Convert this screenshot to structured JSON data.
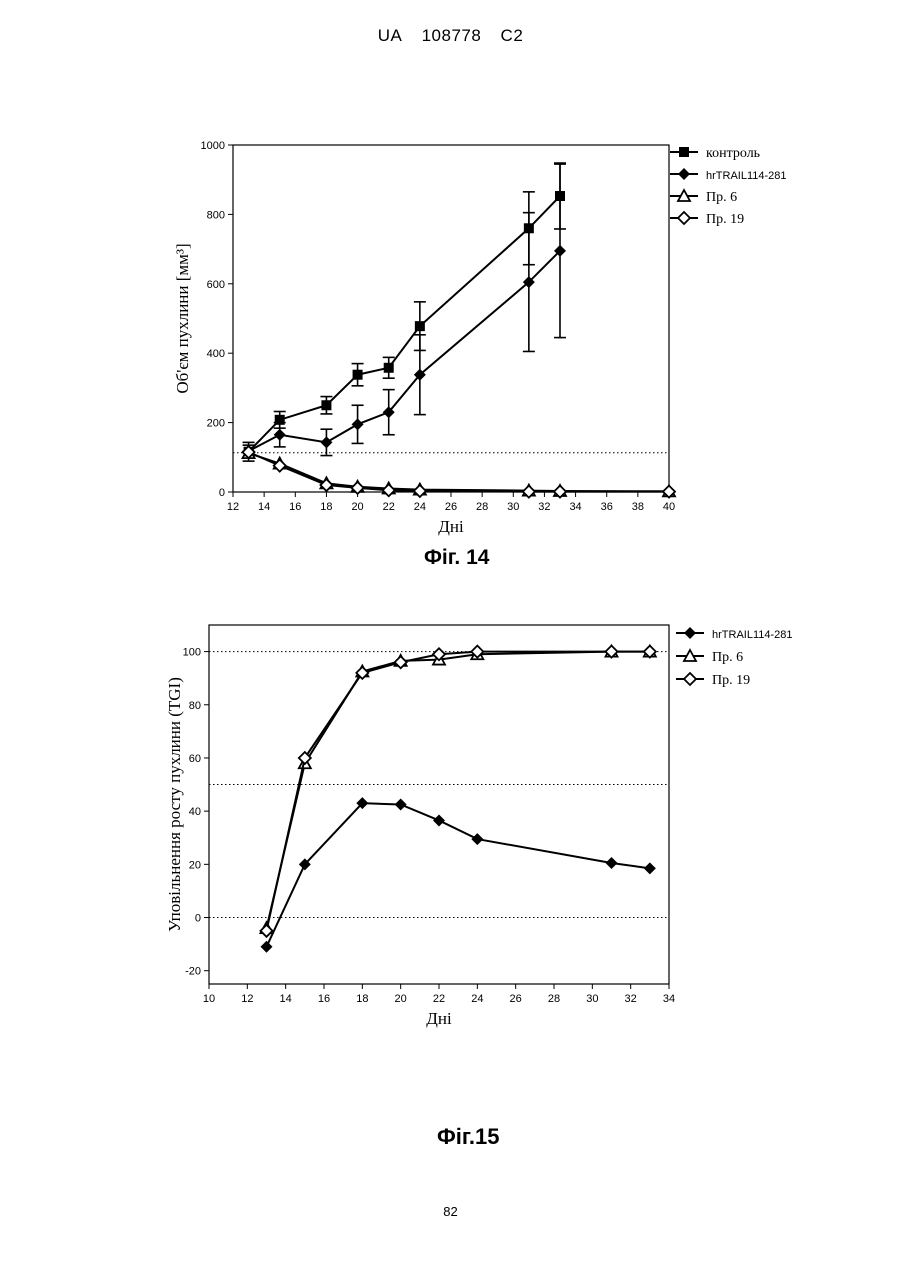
{
  "header": {
    "country": "UA",
    "number": "108778",
    "kind": "C2"
  },
  "page_number": "82",
  "chart_data": [
    {
      "type": "line",
      "caption": "Фіг. 14",
      "xlabel": "Дні",
      "ylabel": "Об'єм пухлини [мм³]",
      "xlim": [
        12,
        40
      ],
      "ylim": [
        0,
        1000
      ],
      "xticks": [
        12,
        14,
        16,
        18,
        20,
        22,
        24,
        26,
        28,
        30,
        32,
        34,
        36,
        38,
        40
      ],
      "yticks": [
        0,
        200,
        400,
        600,
        800,
        1000
      ],
      "reference_lines": [
        0,
        113
      ],
      "legend_position": "right",
      "series": [
        {
          "name": "контроль",
          "marker": "square",
          "x": [
            13,
            15,
            18,
            20,
            22,
            24,
            31,
            33
          ],
          "y": [
            116,
            208,
            250,
            338,
            358,
            478,
            760,
            853
          ],
          "err": [
            27,
            24,
            25,
            32,
            30,
            70,
            105,
            95
          ]
        },
        {
          "name": "hrTRAIL114-281",
          "marker": "diamond",
          "x": [
            13,
            15,
            18,
            20,
            22,
            24,
            31,
            33
          ],
          "y": [
            118,
            165,
            143,
            195,
            230,
            338,
            605,
            695
          ],
          "err": [
            17,
            35,
            38,
            55,
            65,
            115,
            200,
            250
          ]
        },
        {
          "name": "Пр. 6",
          "marker": "triangle",
          "x": [
            13,
            15,
            18,
            20,
            22,
            24,
            31,
            33,
            40
          ],
          "y": [
            112,
            82,
            25,
            15,
            10,
            7,
            4,
            3,
            2
          ]
        },
        {
          "name": "Пр. 19",
          "marker": "open-diamond",
          "x": [
            13,
            15,
            18,
            20,
            22,
            24,
            31,
            33,
            40
          ],
          "y": [
            115,
            76,
            20,
            12,
            5,
            3,
            1,
            1,
            1
          ]
        }
      ]
    },
    {
      "type": "line",
      "caption": "Фіг.15",
      "xlabel": "Дні",
      "ylabel": "Уповільнення росту пухлини (TGI)",
      "xlim": [
        10,
        34
      ],
      "ylim": [
        -25,
        110
      ],
      "xticks": [
        10,
        12,
        14,
        16,
        18,
        20,
        22,
        24,
        26,
        28,
        30,
        32,
        34
      ],
      "yticks": [
        -20,
        0,
        20,
        40,
        60,
        80,
        100
      ],
      "reference_lines": [
        0,
        50,
        100
      ],
      "legend_position": "right",
      "series": [
        {
          "name": "hrTRAIL114-281",
          "marker": "diamond",
          "x": [
            13,
            15,
            18,
            20,
            22,
            24,
            31,
            33
          ],
          "y": [
            -11,
            20,
            43,
            42.5,
            36.5,
            29.5,
            20.5,
            18.5
          ]
        },
        {
          "name": "Пр. 6",
          "marker": "triangle",
          "x": [
            13,
            15,
            18,
            20,
            22,
            24,
            31,
            33
          ],
          "y": [
            -4,
            58,
            92.5,
            96.5,
            97,
            99,
            100,
            100
          ]
        },
        {
          "name": "Пр. 19",
          "marker": "open-diamond",
          "x": [
            13,
            15,
            18,
            20,
            22,
            24,
            31,
            33
          ],
          "y": [
            -5,
            60,
            92,
            96,
            99,
            100,
            100,
            100
          ]
        }
      ]
    }
  ]
}
